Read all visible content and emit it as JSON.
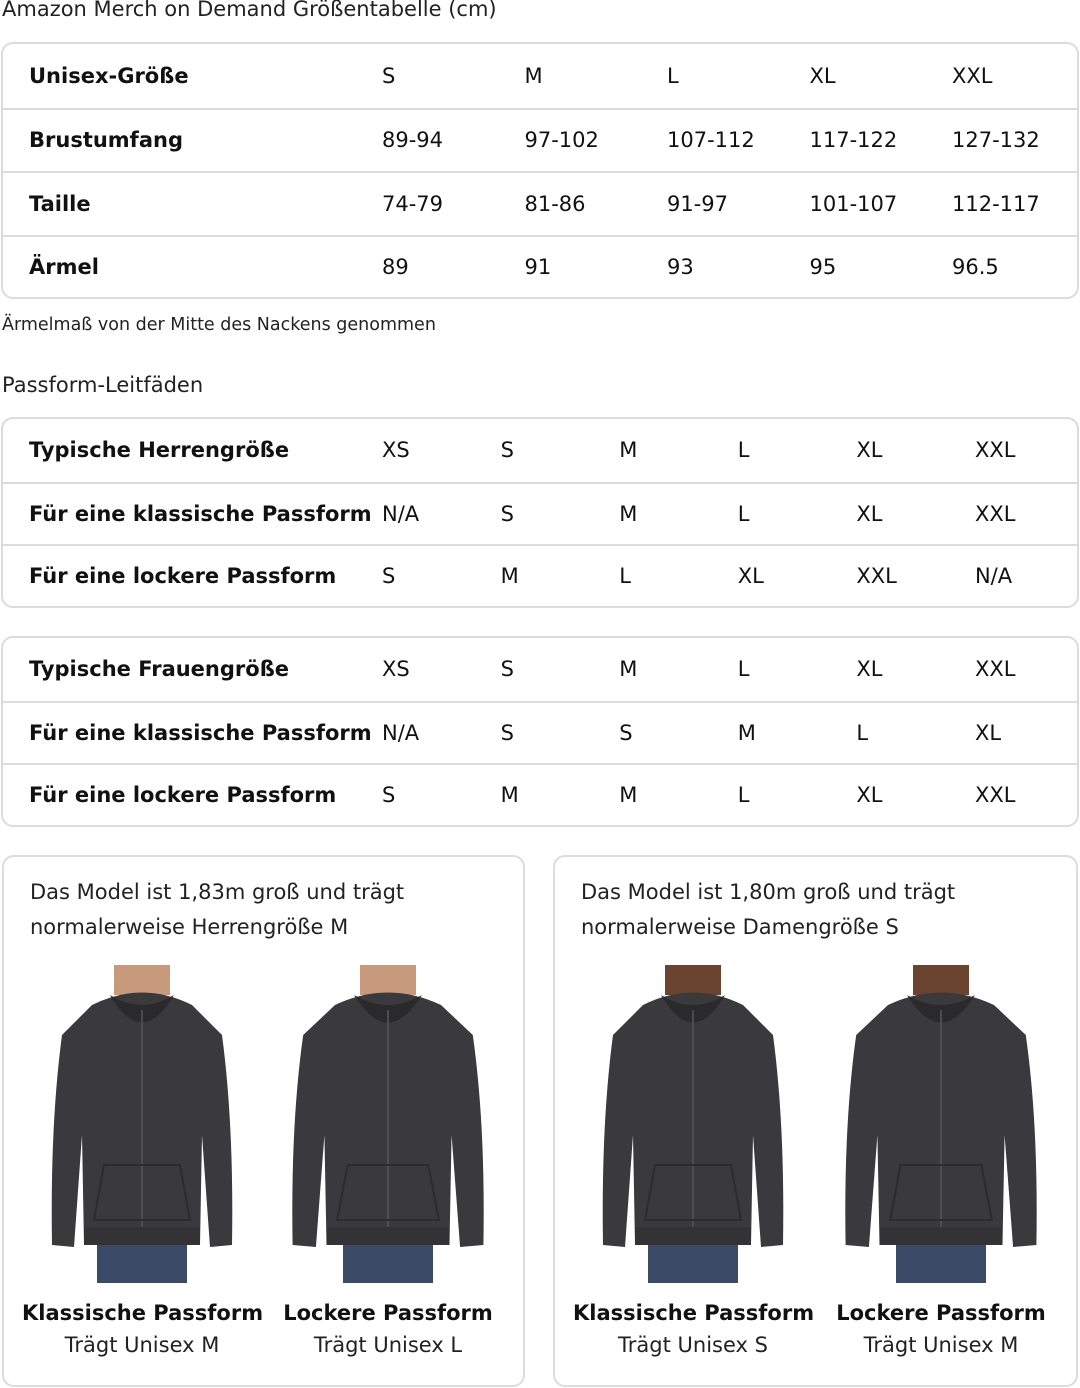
{
  "title": "Amazon Merch on Demand Größentabelle (cm)",
  "size_table": {
    "rows": [
      {
        "label": "Unisex-Größe",
        "values": [
          "S",
          "M",
          "L",
          "XL",
          "XXL"
        ]
      },
      {
        "label": "Brustumfang",
        "values": [
          "89-94",
          "97-102",
          "107-112",
          "117-122",
          "127-132"
        ]
      },
      {
        "label": "Taille",
        "values": [
          "74-79",
          "81-86",
          "91-97",
          "101-107",
          "112-117"
        ]
      },
      {
        "label": "Ärmel",
        "values": [
          "89",
          "91",
          "93",
          "95",
          "96.5"
        ]
      }
    ]
  },
  "note": "Ärmelmaß von der Mitte des Nackens genommen",
  "fit_title": "Passform-Leitfäden",
  "men_fit": {
    "rows": [
      {
        "label": "Typische Herrengröße",
        "values": [
          "XS",
          "S",
          "M",
          "L",
          "XL",
          "XXL"
        ]
      },
      {
        "label": "Für eine klassische Passform",
        "values": [
          "N/A",
          "S",
          "M",
          "L",
          "XL",
          "XXL"
        ]
      },
      {
        "label": "Für eine lockere Passform",
        "values": [
          "S",
          "M",
          "L",
          "XL",
          "XXL",
          "N/A"
        ]
      }
    ]
  },
  "women_fit": {
    "rows": [
      {
        "label": "Typische Frauengröße",
        "values": [
          "XS",
          "S",
          "M",
          "L",
          "XL",
          "XXL"
        ]
      },
      {
        "label": "Für eine klassische Passform",
        "values": [
          "N/A",
          "S",
          "S",
          "M",
          "L",
          "XL"
        ]
      },
      {
        "label": "Für eine lockere Passform",
        "values": [
          "S",
          "M",
          "M",
          "L",
          "XL",
          "XXL"
        ]
      }
    ]
  },
  "models": [
    {
      "text": "Das Model ist 1,83m groß und trägt normalerweise Herrengröße M",
      "skin": "#c89a7c",
      "figures": [
        {
          "fit": "Klassische Passform",
          "size": "Trägt Unisex M"
        },
        {
          "fit": "Lockere Passform",
          "size": "Trägt Unisex L"
        }
      ]
    },
    {
      "text": "Das Model ist 1,80m groß und trägt normalerweise Damengröße S",
      "skin": "#6b4430",
      "figures": [
        {
          "fit": "Klassische Passform",
          "size": "Trägt Unisex S"
        },
        {
          "fit": "Lockere Passform",
          "size": "Trägt Unisex M"
        }
      ]
    }
  ],
  "colors": {
    "hoodie": "#3a3a3c",
    "jeans": "#3b4a66",
    "border": "#dcdcdc"
  }
}
